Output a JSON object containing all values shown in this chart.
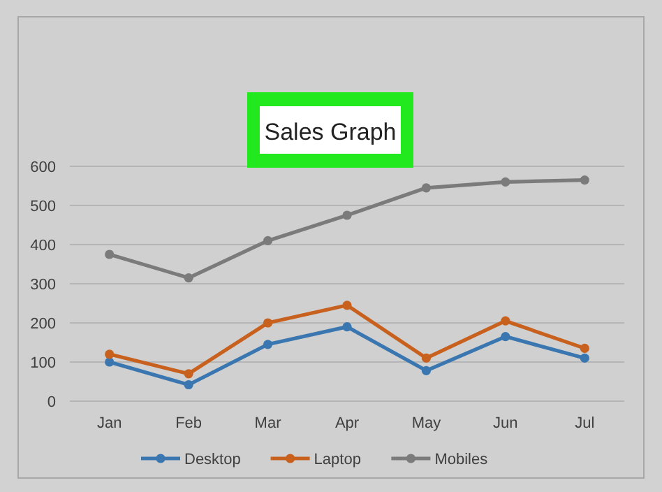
{
  "chart_data": {
    "type": "line",
    "title": "Sales Graph",
    "categories": [
      "Jan",
      "Feb",
      "Mar",
      "Apr",
      "May",
      "Jun",
      "Jul"
    ],
    "series": [
      {
        "name": "Desktop",
        "color": "#3a76b0",
        "values": [
          100,
          42,
          145,
          190,
          78,
          165,
          110
        ]
      },
      {
        "name": "Laptop",
        "color": "#c8601e",
        "values": [
          120,
          70,
          200,
          245,
          110,
          205,
          135
        ]
      },
      {
        "name": "Mobiles",
        "color": "#7b7b7b",
        "values": [
          375,
          315,
          410,
          475,
          545,
          560,
          565
        ]
      }
    ],
    "ylim": [
      0,
      600
    ],
    "yticks": [
      0,
      100,
      200,
      300,
      400,
      500,
      600
    ],
    "grid": "y",
    "legend": "bottom",
    "marker": "circle",
    "line_style": "solid"
  }
}
